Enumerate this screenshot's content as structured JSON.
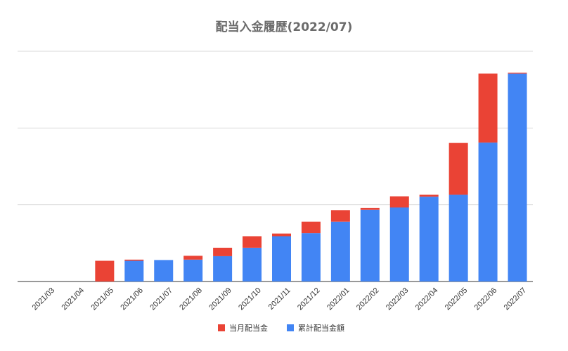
{
  "chart_data": {
    "type": "bar",
    "stacked": true,
    "title": "配当入金履歴(2022/07)",
    "xlabel": "",
    "ylabel": "",
    "ylim": [
      0,
      300
    ],
    "grid": true,
    "legend_position": "bottom",
    "categories": [
      "2021/03",
      "2021/04",
      "2021/05",
      "2021/06",
      "2021/07",
      "2021/08",
      "2021/09",
      "2021/10",
      "2021/11",
      "2021/12",
      "2022/01",
      "2022/02",
      "2022/03",
      "2022/04",
      "2022/05",
      "2022/06",
      "2022/07"
    ],
    "series": [
      {
        "name": "累計配当金額",
        "color": "#4285f4",
        "values": [
          0,
          0,
          0,
          27,
          28,
          28.5,
          33,
          44,
          59,
          63,
          78,
          93.5,
          96.5,
          110.5,
          113,
          181,
          271
        ]
      },
      {
        "name": "当月配当金",
        "color": "#ea4335",
        "values": [
          0,
          0,
          27,
          1.5,
          0,
          5,
          11,
          15,
          3.5,
          15,
          15,
          2.5,
          14.5,
          2.5,
          67.5,
          90,
          1
        ]
      }
    ],
    "legend": [
      {
        "name": "当月配当金",
        "color": "#ea4335"
      },
      {
        "name": "累計配当金額",
        "color": "#4285f4"
      }
    ]
  }
}
